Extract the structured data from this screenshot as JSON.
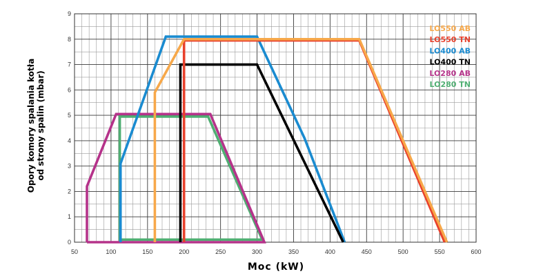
{
  "chart_data": {
    "type": "line",
    "xlabel": "Moc (kW)",
    "ylabel": [
      "Opory komory spalania kotła",
      "od strony spalin (mbar)"
    ],
    "xlim": [
      50,
      600
    ],
    "ylim": [
      0,
      9
    ],
    "x_ticks": [
      50,
      100,
      150,
      200,
      250,
      300,
      350,
      400,
      450,
      500,
      550,
      600
    ],
    "y_ticks": [
      0,
      1,
      2,
      3,
      4,
      5,
      6,
      7,
      8,
      9
    ],
    "grid": true,
    "legend_position": "top-right",
    "series": [
      {
        "name": "LO550 AB",
        "color": "#F7A84A",
        "points": [
          [
            160,
            0
          ],
          [
            160,
            5.9
          ],
          [
            200,
            8.0
          ],
          [
            440,
            8.0
          ],
          [
            560,
            0
          ]
        ]
      },
      {
        "name": "LO550 TN",
        "color": "#E8412C",
        "points": [
          [
            200,
            0
          ],
          [
            200,
            7.95
          ],
          [
            440,
            7.95
          ],
          [
            557,
            0
          ]
        ]
      },
      {
        "name": "LO400 AB",
        "color": "#1A8BD0",
        "points": [
          [
            113,
            0
          ],
          [
            113,
            3.1
          ],
          [
            175,
            8.1
          ],
          [
            300,
            8.1
          ],
          [
            365,
            4.1
          ],
          [
            420,
            0
          ]
        ]
      },
      {
        "name": "LO400 TN",
        "color": "#000000",
        "points": [
          [
            195,
            0
          ],
          [
            195,
            7.0
          ],
          [
            300,
            7.0
          ],
          [
            418,
            0
          ]
        ]
      },
      {
        "name": "LO280 AB",
        "color": "#B5338A",
        "points": [
          [
            67,
            0
          ],
          [
            67,
            2.2
          ],
          [
            107,
            5.05
          ],
          [
            236,
            5.05
          ],
          [
            310,
            0
          ],
          [
            67,
            0
          ]
        ]
      },
      {
        "name": "LO280 TN",
        "color": "#4FAE72",
        "points": [
          [
            112,
            0
          ],
          [
            112,
            4.95
          ],
          [
            233,
            4.95
          ],
          [
            307,
            0.1
          ],
          [
            112,
            0.1
          ]
        ]
      }
    ]
  }
}
